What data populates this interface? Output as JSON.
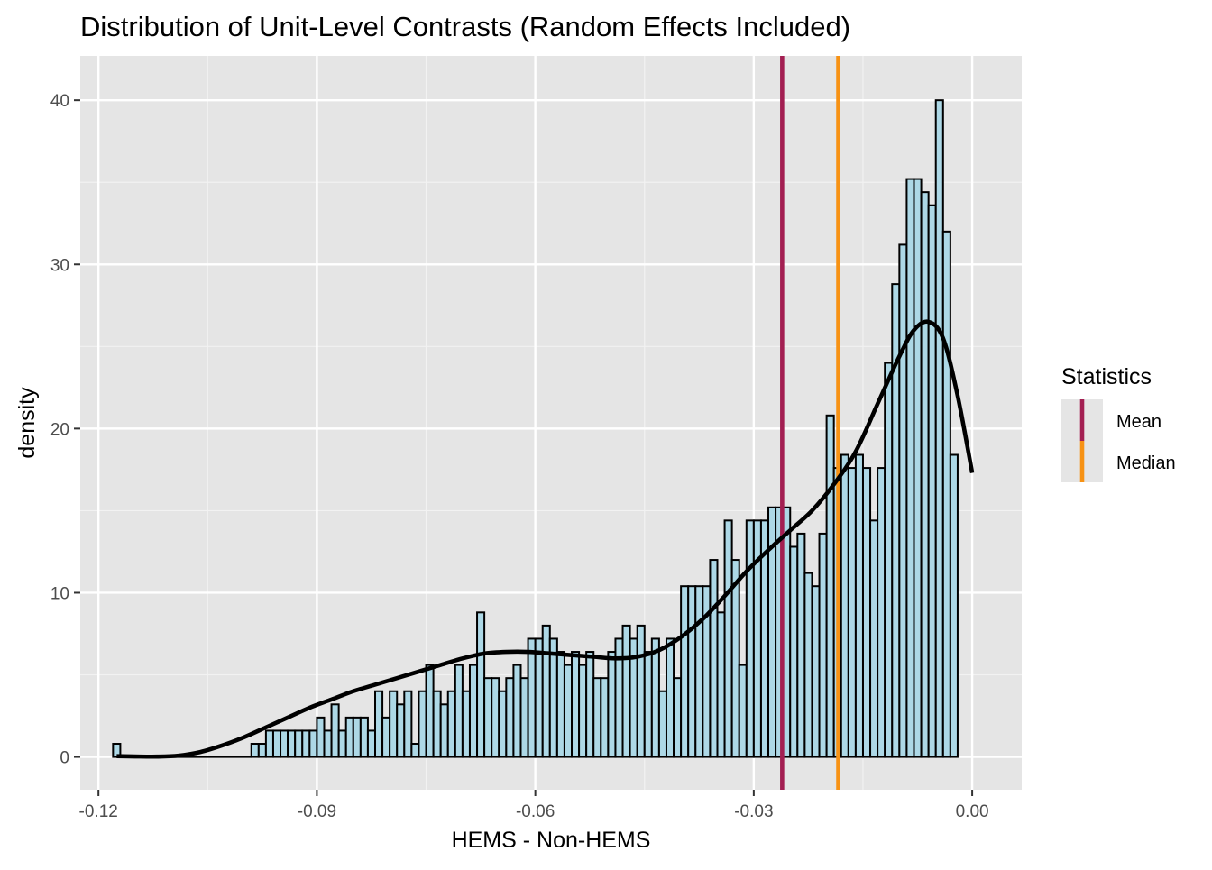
{
  "chart_data": {
    "type": "bar",
    "title": "Distribution of Unit-Level Contrasts (Random Effects Included)",
    "xlabel": "HEMS - Non-HEMS",
    "ylabel": "density",
    "xlim": [
      -0.1225,
      0.0068
    ],
    "ylim": [
      -2.0,
      42.7
    ],
    "x_ticks": [
      -0.12,
      -0.09,
      -0.06,
      -0.03,
      0.0
    ],
    "x_tick_labels": [
      "-0.12",
      "-0.09",
      "-0.06",
      "-0.03",
      "0.00"
    ],
    "y_ticks": [
      0,
      10,
      20,
      30,
      40
    ],
    "y_tick_labels": [
      "0",
      "10",
      "20",
      "30",
      "40"
    ],
    "grid": true,
    "panel_background": "#e5e5e5",
    "bar_fill": "#add8e6",
    "bar_outline": "#000000",
    "histogram": {
      "bin_width": 0.001,
      "first_bin_left": -0.1175,
      "densities": [
        0.8,
        0,
        0,
        0,
        0,
        0,
        0,
        0,
        0,
        0,
        0,
        0,
        0,
        0,
        0,
        0,
        0,
        0,
        0,
        0,
        0,
        0,
        0,
        0,
        0,
        0,
        0,
        0,
        0,
        0,
        0,
        0,
        0,
        0,
        0,
        0,
        0,
        0,
        0,
        0,
        0,
        0,
        0,
        0,
        0,
        0,
        0,
        0,
        0,
        0,
        0.8,
        0.8,
        0,
        1.6,
        0.8,
        1.6,
        1.6,
        1.6,
        0.8,
        1.6,
        2.4,
        1.6,
        3.2,
        1.6,
        2.4,
        2.4,
        1.6,
        4.0,
        2.4,
        4.0,
        0.8,
        4.0,
        4.0,
        5.6,
        4.0,
        3.2,
        5.6,
        4.0,
        8.8,
        4.8,
        4.0,
        4.8,
        5.6,
        4.8,
        7.2,
        7.2,
        8.0,
        7.2,
        6.4,
        5.6,
        6.4,
        4.8,
        7.2,
        8.0,
        7.2,
        6.4,
        7.2,
        7.2,
        5.6,
        5.6,
        5.6,
        6.4,
        4.8,
        5.6,
        7.2,
        7.2,
        7.2,
        4.8,
        4.0,
        4.8,
        8.0,
        6.4,
        4.8,
        8.0,
        8.0,
        4.8,
        8.8,
        7.2,
        4.8,
        5.6,
        6.4,
        6.4,
        4.8,
        4.8,
        7.2,
        8.0,
        6.4,
        7.2,
        8.0,
        6.4,
        4.0,
        8.0,
        7.2,
        7.2,
        6.4,
        4.8,
        7.2,
        6.4,
        4.8,
        5.6,
        8.0,
        5.6,
        4.0,
        5.6,
        4.8,
        4.8,
        8.8,
        6.4,
        4.0,
        5.6,
        8.8,
        4.8,
        5.6,
        4.0,
        4.0,
        5.6,
        4.8,
        7.2,
        7.2,
        4.0,
        5.6,
        4.8,
        7.2,
        4.8,
        4.8,
        6.4,
        4.8,
        8.0,
        4.0,
        3.2,
        4.8,
        5.6,
        4.0,
        4.0,
        4.8,
        7.2,
        7.2,
        5.6,
        4.8,
        5.6,
        4.8,
        6.4,
        6.4,
        5.6,
        8.8,
        5.6,
        6.4,
        4.8,
        8.0,
        7.2,
        6.4,
        4.0,
        7.2,
        6.4,
        4.8,
        4.0,
        7.2,
        5.6,
        4.8,
        4.8,
        4.8,
        6.4,
        8.0,
        5.6,
        4.8,
        5.6,
        6.4,
        8.0,
        7.2,
        8.8,
        8.8,
        6.4,
        5.6,
        8.0,
        8.0,
        4.8,
        8.0,
        7.2,
        7.2,
        5.6,
        4.8,
        5.6,
        4.8,
        8.8,
        8.0,
        6.4,
        8.8,
        7.2,
        4.8,
        7.2,
        7.2,
        8.8,
        4.8,
        7.2,
        10.4,
        10.4,
        10.4,
        10.4,
        12.0,
        11.2,
        8.8,
        14.4,
        10.4,
        5.6,
        14.4,
        14.4,
        15.2,
        15.2,
        14.4,
        12.8,
        11.2,
        10.4,
        14.4,
        20.8,
        16.0,
        18.4,
        18.4,
        17.6,
        18.4,
        16.8,
        14.4,
        17.6,
        20.0,
        24.0,
        28.8,
        31.2,
        35.2,
        35.2,
        34.4,
        33.6,
        40.0,
        32.0,
        18.4
      ],
      "note_bins": "bins index aligned to first_bin_left with bin_width"
    },
    "series": [
      {
        "name": "density_curve",
        "kind": "line",
        "x": [
          -0.1175,
          -0.115,
          -0.112,
          -0.109,
          -0.106,
          -0.103,
          -0.1,
          -0.097,
          -0.094,
          -0.091,
          -0.088,
          -0.085,
          -0.082,
          -0.079,
          -0.076,
          -0.073,
          -0.07,
          -0.067,
          -0.064,
          -0.061,
          -0.058,
          -0.055,
          -0.052,
          -0.049,
          -0.046,
          -0.043,
          -0.04,
          -0.037,
          -0.034,
          -0.031,
          -0.028,
          -0.025,
          -0.022,
          -0.019,
          -0.016,
          -0.013,
          -0.01,
          -0.008,
          -0.006,
          -0.004,
          -0.002,
          0.0
        ],
        "y": [
          0.05,
          0.03,
          0.02,
          0.08,
          0.3,
          0.7,
          1.2,
          1.8,
          2.4,
          3.0,
          3.5,
          4.0,
          4.4,
          4.8,
          5.2,
          5.6,
          6.0,
          6.3,
          6.4,
          6.4,
          6.3,
          6.2,
          6.1,
          6.0,
          6.1,
          6.5,
          7.3,
          8.4,
          9.8,
          11.3,
          12.6,
          13.8,
          15.0,
          16.6,
          18.6,
          21.5,
          24.4,
          26.0,
          26.5,
          25.5,
          22.0,
          17.3
        ]
      }
    ],
    "vlines": [
      {
        "name": "Mean",
        "x": -0.0261,
        "color": "#a31f52"
      },
      {
        "name": "Median",
        "x": -0.0184,
        "color": "#f79214"
      }
    ],
    "legend": {
      "title": "Statistics",
      "placement": "right",
      "items": [
        {
          "label": "Mean",
          "color": "#a31f52"
        },
        {
          "label": "Median",
          "color": "#f79214"
        }
      ]
    }
  }
}
